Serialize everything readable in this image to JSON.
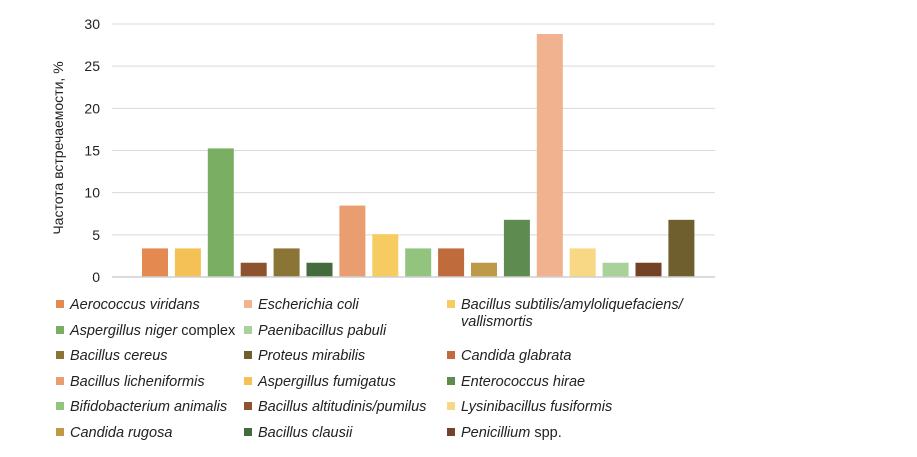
{
  "chart_data": {
    "type": "bar",
    "title": "",
    "xlabel": "",
    "ylabel": "Частота встречаемости, %",
    "ylim": [
      0,
      30
    ],
    "yticks": [
      0,
      5,
      10,
      15,
      20,
      25,
      30
    ],
    "grid": true,
    "legend_placement": "bottom",
    "categories": [
      "Aerococcus viridans",
      "Aspergillus fumigatus",
      "Aspergillus niger complex",
      "Bacillus altitudinis/pumilus",
      "Bacillus cereus",
      "Bacillus clausii",
      "Bacillus licheniformis",
      "Bacillus subtilis/amyloliquefaciens/vallismortis",
      "Bifidobacterium animalis",
      "Candida glabrata",
      "Candida rugosa",
      "Enterococcus hirae",
      "Escherichia coli",
      "Lysinibacillus fusiformis",
      "Paenibacillus pabuli",
      "Penicillium spp.",
      "Proteus mirabilis"
    ],
    "values": [
      3.39,
      3.39,
      15.25,
      1.69,
      3.39,
      1.69,
      8.47,
      5.08,
      3.39,
      3.39,
      1.69,
      6.78,
      28.81,
      3.39,
      1.69,
      1.69,
      6.78
    ],
    "colors": [
      "#E4894F",
      "#F3C155",
      "#7AAE62",
      "#8E522E",
      "#8A7436",
      "#436B3C",
      "#EA9E70",
      "#F6CC62",
      "#92C37F",
      "#BF6B3B",
      "#BE9A48",
      "#5E8B4F",
      "#F0B28F",
      "#F8D884",
      "#A8D29A",
      "#744226",
      "#6F5F2F"
    ]
  },
  "legend": [
    {
      "italic": "Aerococcus viridans",
      "rest": "",
      "color": "#E4894F"
    },
    {
      "italic": "Escherichia coli",
      "rest": "",
      "color": "#F0B28F"
    },
    {
      "italic": "Bacillus subtilis/amyloliquefaciens/",
      "italic2": "vallismortis",
      "rest": "",
      "color": "#F6CC62"
    },
    {
      "italic": "Aspergillus niger",
      "rest": " complex",
      "color": "#7AAE62"
    },
    {
      "italic": "Paenibacillus pabuli",
      "rest": "",
      "color": "#A8D29A"
    },
    {
      "italic": "Bacillus cereus",
      "rest": "",
      "color": "#8A7436"
    },
    {
      "italic": "Proteus mirabilis",
      "rest": "",
      "color": "#6F5F2F"
    },
    {
      "italic": "Candida glabrata",
      "rest": "",
      "color": "#BF6B3B"
    },
    {
      "italic": "Bacillus licheniformis",
      "rest": "",
      "color": "#EA9E70"
    },
    {
      "italic": "Aspergillus fumigatus",
      "rest": "",
      "color": "#F3C155"
    },
    {
      "italic": "Enterococcus hirae",
      "rest": "",
      "color": "#5E8B4F"
    },
    {
      "italic": "Bifidobacterium animalis",
      "rest": "",
      "color": "#92C37F"
    },
    {
      "italic": "Bacillus altitudinis/pumilus",
      "rest": "",
      "color": "#8E522E"
    },
    {
      "italic": "Lysinibacillus fusiformis",
      "rest": "",
      "color": "#F8D884"
    },
    {
      "italic": "Candida rugosa",
      "rest": "",
      "color": "#BE9A48"
    },
    {
      "italic": "Bacillus clausii",
      "rest": "",
      "color": "#436B3C"
    },
    {
      "italic": "Penicillium",
      "rest": " spp.",
      "color": "#744226"
    }
  ]
}
